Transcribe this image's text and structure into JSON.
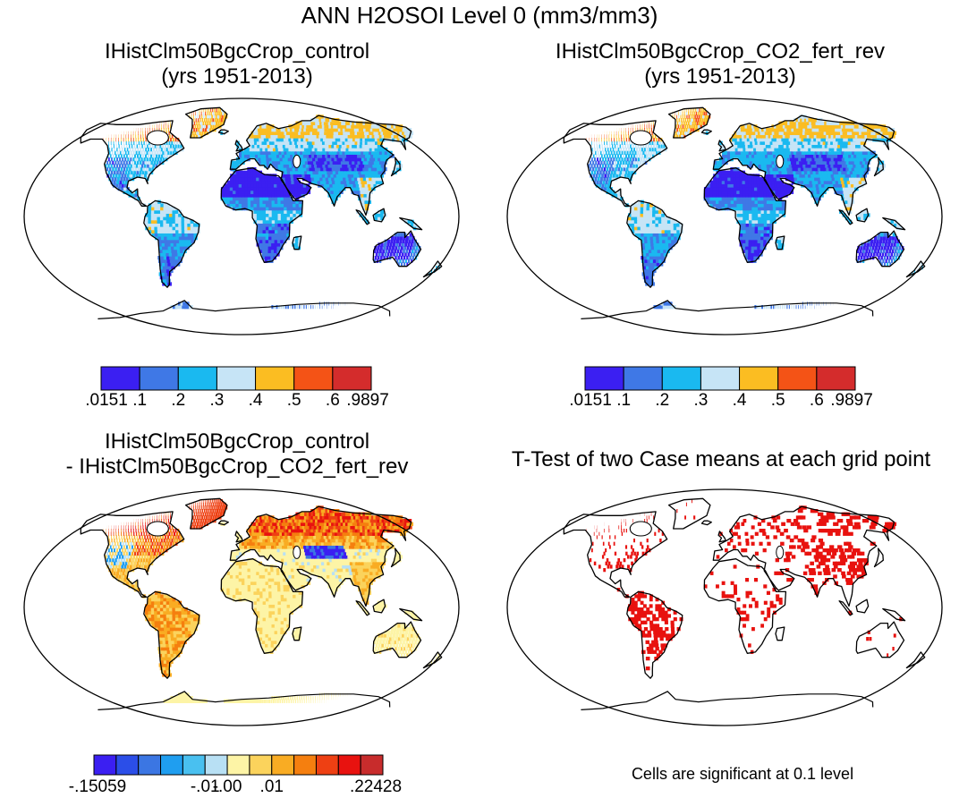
{
  "page_title": "ANN H2OSOI Level 0 (mm3/mm3)",
  "panels": [
    {
      "title": "IHistClm50BgcCrop_control\n(yrs 1951-2013)",
      "type": "absolute"
    },
    {
      "title": "IHistClm50BgcCrop_CO2_fert_rev\n(yrs 1951-2013)",
      "type": "absolute"
    },
    {
      "title": "IHistClm50BgcCrop_control\n- IHistClm50BgcCrop_CO2_fert_rev",
      "type": "difference"
    },
    {
      "title": "T-Test of two Case means at each grid point",
      "type": "ttest"
    }
  ],
  "colorbar_abs": {
    "colors": [
      "#3b1ff2",
      "#3f78e6",
      "#1ab9f0",
      "#c6e4f6",
      "#fbbd22",
      "#f45316",
      "#d42c2c"
    ],
    "labels": [
      ".0151",
      ".1",
      ".2",
      ".3",
      ".4",
      ".5",
      ".6",
      ".9897"
    ]
  },
  "colorbar_diff": {
    "colors": [
      "#3b1ff2",
      "#2b4ee8",
      "#3b76e3",
      "#1f9ef0",
      "#49c0f0",
      "#b8e0f4",
      "#fdf4a6",
      "#fbd35c",
      "#f9ac23",
      "#f57f0f",
      "#ee4013",
      "#e8120f",
      "#c82c2c"
    ],
    "labels": [
      "-.15059",
      "-.01",
      "-.00",
      ".01",
      ".22428"
    ]
  },
  "significance_note": "Cells are significant at 0.1 level",
  "legend_colors": {
    "significant": "#e8120f"
  }
}
